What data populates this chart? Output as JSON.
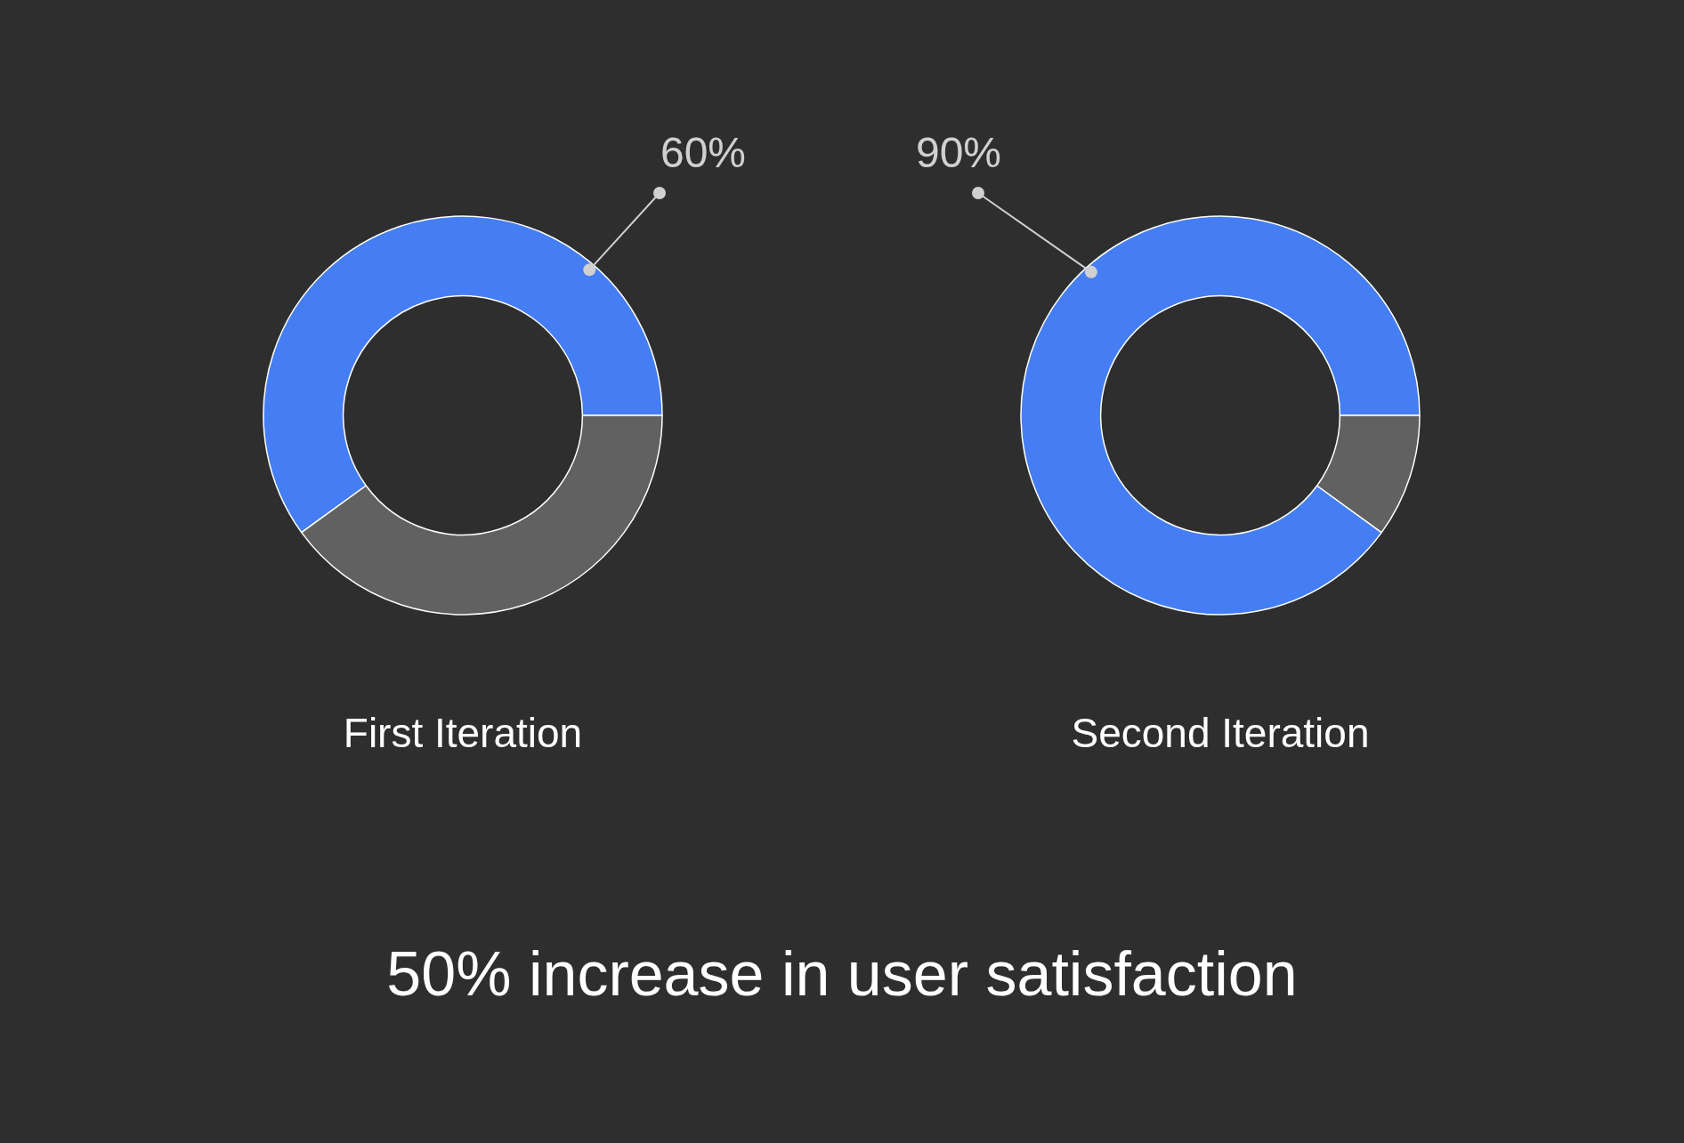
{
  "chart_data": [
    {
      "type": "donut",
      "title": "First Iteration",
      "categories": [
        null,
        null
      ],
      "values": [
        60,
        40
      ],
      "colors": [
        "#457ef4",
        "#616161"
      ],
      "value_labels": [
        "60%",
        null
      ]
    },
    {
      "type": "donut",
      "title": "Second Iteration",
      "categories": [
        null,
        null
      ],
      "values": [
        90,
        10
      ],
      "colors": [
        "#457ef4",
        "#616161"
      ],
      "value_labels": [
        "90%",
        null
      ]
    },
    {
      "type": "other",
      "title": "50% increase in user satisfaction"
    }
  ]
}
